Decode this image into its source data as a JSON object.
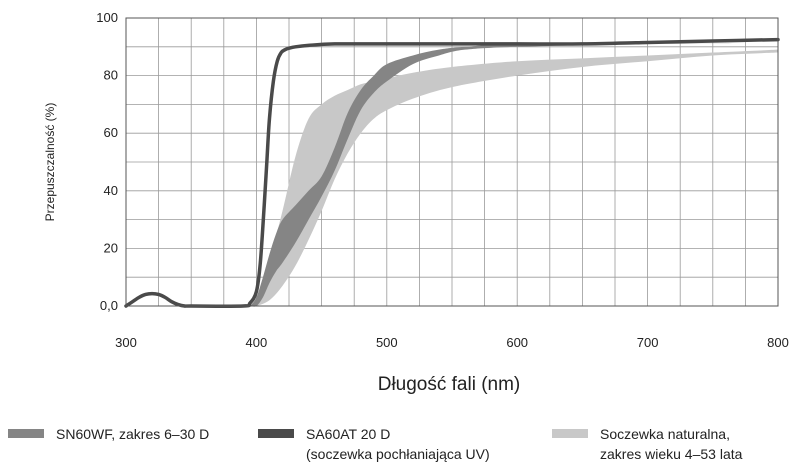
{
  "chart_data": {
    "type": "area",
    "xlabel": "Długość fali (nm)",
    "ylabel": "Przepuszczalność (%)",
    "xlim": [
      300,
      800
    ],
    "ylim": [
      0,
      100
    ],
    "x_ticks": [
      "300",
      "400",
      "500",
      "600",
      "700",
      "800"
    ],
    "y_ticks": [
      "0,0",
      "20",
      "40",
      "60",
      "80",
      "100"
    ],
    "grid": true,
    "series": [
      {
        "name": "Soczewka naturalna, zakres wieku 4–53 lata",
        "kind": "band",
        "color": "#c8c8c8",
        "x": [
          395,
          400,
          410,
          420,
          430,
          440,
          450,
          460,
          470,
          480,
          490,
          500,
          520,
          550,
          600,
          650,
          700,
          750,
          800
        ],
        "upper": [
          0,
          3,
          16,
          33,
          52,
          65,
          70,
          73,
          75,
          77,
          78,
          79,
          81,
          83,
          85,
          86,
          87,
          88,
          89
        ],
        "lower": [
          0,
          0,
          2,
          7,
          14,
          23,
          33,
          44,
          53,
          60,
          65,
          68,
          72,
          76,
          80,
          83,
          85,
          87,
          88
        ]
      },
      {
        "name": "SN60WF, zakres 6–30 D",
        "kind": "band",
        "color": "#858585",
        "x": [
          395,
          400,
          405,
          410,
          415,
          420,
          430,
          440,
          450,
          460,
          470,
          480,
          490,
          500,
          520,
          540,
          560,
          600,
          700,
          800
        ],
        "upper": [
          0,
          3,
          10,
          18,
          25,
          30,
          35,
          40,
          45,
          55,
          67,
          75,
          80,
          84,
          87,
          89,
          90,
          91,
          91,
          91
        ],
        "lower": [
          0,
          0,
          3,
          8,
          12,
          15,
          22,
          30,
          38,
          47,
          58,
          68,
          74,
          78,
          84,
          87,
          89,
          90,
          91,
          91
        ]
      },
      {
        "name": "SA60AT 20 D (soczewka pochłaniająca UV)",
        "kind": "line",
        "color": "#4a4a4a",
        "x": [
          300,
          305,
          310,
          315,
          320,
          325,
          330,
          335,
          340,
          345,
          350,
          390,
          395,
          400,
          403,
          406,
          408,
          410,
          413,
          416,
          419,
          422,
          425,
          430,
          440,
          460,
          500,
          550,
          600,
          650,
          700,
          750,
          800
        ],
        "y": [
          0,
          1.5,
          3,
          4,
          4.3,
          4,
          3,
          1.5,
          0.5,
          0,
          0,
          0,
          1,
          5,
          15,
          35,
          50,
          65,
          78,
          85,
          88,
          89,
          89.5,
          90,
          90.5,
          91,
          91,
          91,
          91,
          91,
          91.5,
          92,
          92.5
        ]
      }
    ],
    "legend": {
      "placement": "bottom",
      "items": [
        {
          "label": "SN60WF, zakres 6–30 D",
          "color": "#858585"
        },
        {
          "label": "SA60AT 20 D",
          "label2": "(soczewka pochłaniająca UV)",
          "color": "#4a4a4a"
        },
        {
          "label": "Soczewka naturalna,",
          "label2": "zakres wieku 4–53 lata",
          "color": "#c8c8c8"
        }
      ]
    }
  }
}
